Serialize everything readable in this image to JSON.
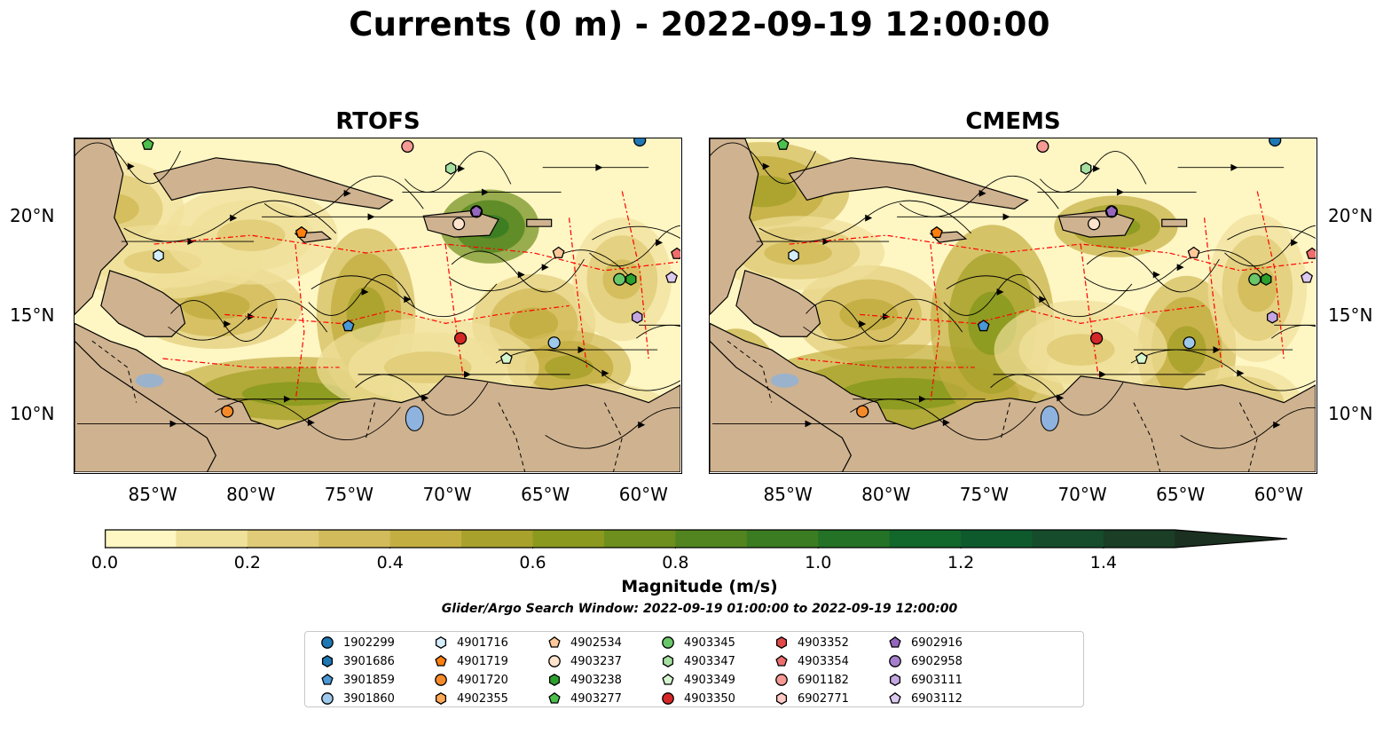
{
  "title": "Currents (0 m) - 2022-09-19 12:00:00",
  "chart_data": [
    {
      "type": "heatmap",
      "title": "RTOFS",
      "xlim": [
        -89,
        -58
      ],
      "ylim": [
        7,
        24
      ],
      "xticks": [
        "85°W",
        "80°W",
        "75°W",
        "70°W",
        "65°W",
        "60°W"
      ],
      "yticks": [
        "10°N",
        "15°N",
        "20°N"
      ],
      "colorbar": "Magnitude (m/s)"
    },
    {
      "type": "heatmap",
      "title": "CMEMS",
      "xlim": [
        -89,
        -58
      ],
      "ylim": [
        7,
        24
      ],
      "xticks": [
        "85°W",
        "80°W",
        "75°W",
        "70°W",
        "65°W",
        "60°W"
      ],
      "yticks": [
        "10°N",
        "15°N",
        "20°N"
      ],
      "colorbar": "Magnitude (m/s)"
    }
  ],
  "colorbar": {
    "label": "Magnitude (m/s)",
    "min": 0.0,
    "max": 1.6,
    "step": 0.1,
    "extend": "max",
    "tick_labels": [
      "0.0",
      "0.2",
      "0.4",
      "0.6",
      "0.8",
      "1.0",
      "1.2",
      "1.4"
    ],
    "colors": [
      "#fef6c3",
      "#efe09a",
      "#e0cc78",
      "#d2bb5a",
      "#c3ae41",
      "#a8a22c",
      "#8b9a1f",
      "#6e8f1d",
      "#52851f",
      "#3b7c22",
      "#237225",
      "#12672b",
      "#0f5a2d",
      "#164c2b",
      "#1a3e26",
      "#1b3020"
    ]
  },
  "search_window": "Glider/Argo Search Window: 2022-09-19 01:00:00 to 2022-09-19 12:00:00",
  "legend": [
    {
      "id": "1902299",
      "marker": "circle",
      "color": "#1f77b4"
    },
    {
      "id": "3901686",
      "marker": "hexagon",
      "color": "#1f77b4"
    },
    {
      "id": "3901859",
      "marker": "pentagon",
      "color": "#4a98d6"
    },
    {
      "id": "3901860",
      "marker": "circle",
      "color": "#9ec9ec"
    },
    {
      "id": "4901716",
      "marker": "hexagon",
      "color": "#d4eefc"
    },
    {
      "id": "4901719",
      "marker": "pentagon",
      "color": "#ff7f0e"
    },
    {
      "id": "4901720",
      "marker": "circle",
      "color": "#f58a2a"
    },
    {
      "id": "4902355",
      "marker": "hexagon",
      "color": "#ffa955"
    },
    {
      "id": "4902534",
      "marker": "pentagon",
      "color": "#ffc899"
    },
    {
      "id": "4903237",
      "marker": "circle",
      "color": "#ffe3cc"
    },
    {
      "id": "4903238",
      "marker": "hexagon",
      "color": "#2ca02c"
    },
    {
      "id": "4903277",
      "marker": "pentagon",
      "color": "#4cc04c"
    },
    {
      "id": "4903345",
      "marker": "circle",
      "color": "#69c769"
    },
    {
      "id": "4903347",
      "marker": "hexagon",
      "color": "#a5e0a0"
    },
    {
      "id": "4903349",
      "marker": "pentagon",
      "color": "#d5f5cf"
    },
    {
      "id": "4903350",
      "marker": "circle",
      "color": "#d62728"
    },
    {
      "id": "4903352",
      "marker": "hexagon",
      "color": "#e24a4a"
    },
    {
      "id": "4903354",
      "marker": "pentagon",
      "color": "#ee6e6e"
    },
    {
      "id": "6901182",
      "marker": "circle",
      "color": "#f59a94"
    },
    {
      "id": "6902771",
      "marker": "hexagon",
      "color": "#ffc9c4"
    },
    {
      "id": "6902916",
      "marker": "pentagon",
      "color": "#9467bd"
    },
    {
      "id": "6902958",
      "marker": "circle",
      "color": "#a57fcd"
    },
    {
      "id": "6903111",
      "marker": "hexagon",
      "color": "#c3a6e2"
    },
    {
      "id": "6903112",
      "marker": "pentagon",
      "color": "#dccaf0"
    }
  ]
}
